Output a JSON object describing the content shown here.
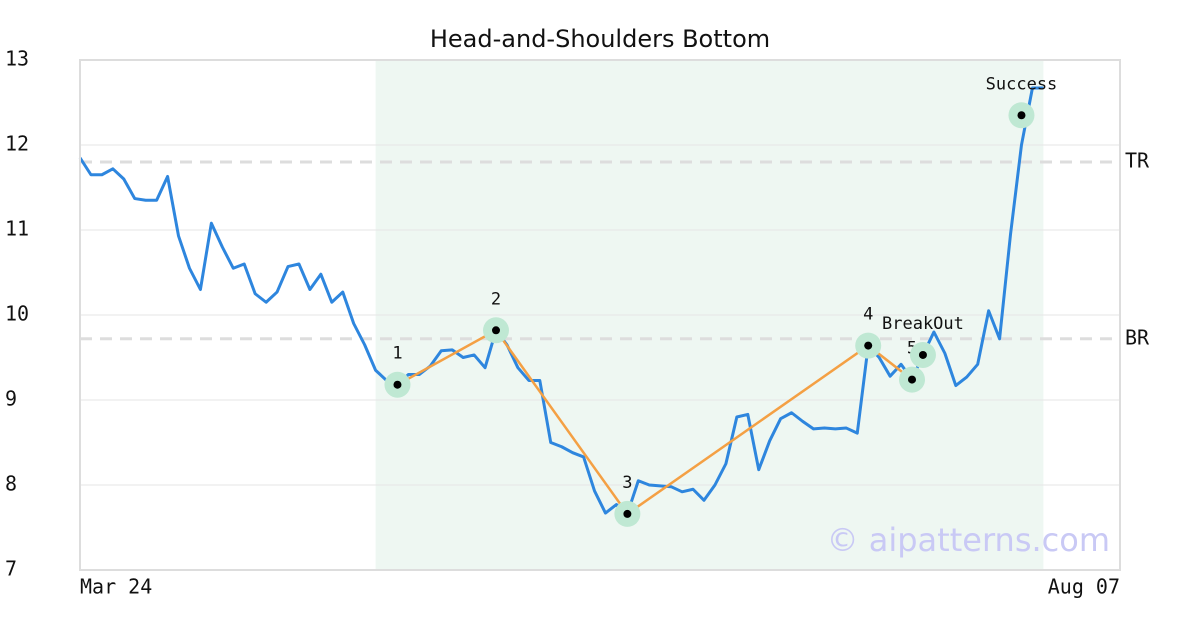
{
  "chart_data": {
    "type": "line",
    "title": "Head-and-Shoulders Bottom",
    "xlim": [
      0,
      95
    ],
    "xticks": [
      {
        "value": 0,
        "label": "Mar 24"
      },
      {
        "value": 95,
        "label": "Aug 07"
      }
    ],
    "ylim": [
      7,
      13
    ],
    "yticks": [
      7,
      8,
      9,
      10,
      11,
      12,
      13
    ],
    "grid": true,
    "series": [
      {
        "color": "#2e86de",
        "values": [
          11.85,
          11.65,
          11.65,
          11.72,
          11.6,
          11.37,
          11.35,
          11.35,
          11.63,
          10.93,
          10.55,
          10.3,
          11.08,
          10.8,
          10.55,
          10.6,
          10.25,
          10.15,
          10.27,
          10.57,
          10.6,
          10.3,
          10.48,
          10.15,
          10.27,
          9.9,
          9.65,
          9.35,
          9.23,
          9.18,
          9.3,
          9.3,
          9.4,
          9.58,
          9.59,
          9.5,
          9.53,
          9.38,
          9.82,
          9.65,
          9.38,
          9.23,
          9.23,
          8.5,
          8.45,
          8.38,
          8.33,
          7.93,
          7.67,
          7.77,
          7.66,
          8.05,
          8.0,
          7.99,
          7.98,
          7.92,
          7.95,
          7.82,
          8.0,
          8.25,
          8.8,
          8.83,
          8.18,
          8.52,
          8.78,
          8.85,
          8.75,
          8.66,
          8.67,
          8.66,
          8.67,
          8.61,
          9.64,
          9.5,
          9.28,
          9.42,
          9.24,
          9.53,
          9.8,
          9.55,
          9.17,
          9.27,
          9.42,
          10.05,
          9.72,
          10.95,
          12.0,
          12.67,
          12.67
        ]
      }
    ],
    "pattern_span": [
      27,
      88
    ],
    "pattern_color": "#f4a044",
    "pattern_points": {
      "indices": [
        29,
        38,
        50,
        72,
        76
      ],
      "values": [
        9.18,
        9.82,
        7.66,
        9.64,
        9.24
      ],
      "labels": [
        "1",
        "2",
        "3",
        "4",
        "5"
      ]
    },
    "breakout": {
      "index": 77,
      "value": 9.53,
      "label": "BreakOut"
    },
    "success": {
      "index": 86,
      "value": 12.35,
      "label": "Success"
    },
    "levels": [
      {
        "label": "TR",
        "value": 11.8
      },
      {
        "label": "BR",
        "value": 9.72
      }
    ],
    "watermark": "© aipatterns.com"
  }
}
